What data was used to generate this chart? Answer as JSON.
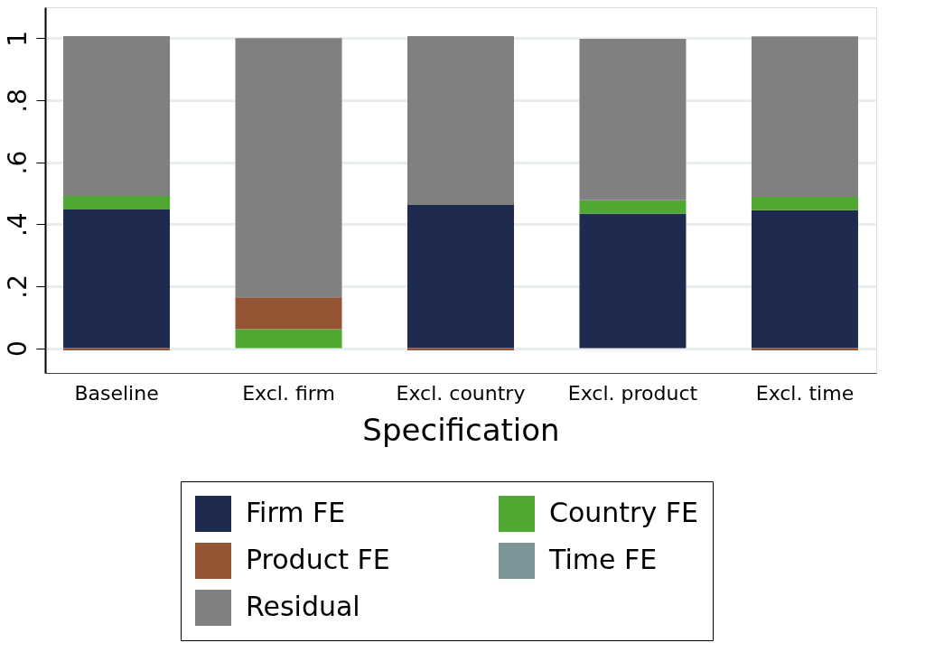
{
  "chart_data": {
    "type": "bar",
    "stacked": true,
    "xlabel": "Specification",
    "categories": [
      "Baseline",
      "Excl. firm",
      "Excl. country",
      "Excl. product",
      "Excl. time"
    ],
    "series": [
      {
        "name": "Firm FE",
        "color": "#1f2a4f",
        "values": [
          0.447,
          0,
          0.462,
          0.434,
          0.445
        ]
      },
      {
        "name": "Country FE",
        "color": "#4fa832",
        "values": [
          0.044,
          0.061,
          0,
          0.043,
          0.043
        ]
      },
      {
        "name": "Product FE",
        "color": "#955534",
        "values": [
          -0.007,
          0.103,
          -0.007,
          0,
          -0.007
        ]
      },
      {
        "name": "Time FE",
        "color": "#7b9498",
        "values": [
          0,
          0,
          0,
          0,
          0
        ]
      },
      {
        "name": "Residual",
        "color": "#808080",
        "values": [
          0.516,
          0.836,
          0.545,
          0.521,
          0.518
        ]
      }
    ],
    "ylim": [
      -0.08,
      1.1
    ],
    "yticks": [
      0,
      {
        "value": 0.2,
        "label": ".2"
      },
      {
        "value": 0.4,
        "label": ".4"
      },
      {
        "value": 0.6,
        "label": ".6"
      },
      {
        "value": 0.8,
        "label": ".8"
      },
      1
    ],
    "grid": "y",
    "legend": "bottom"
  }
}
